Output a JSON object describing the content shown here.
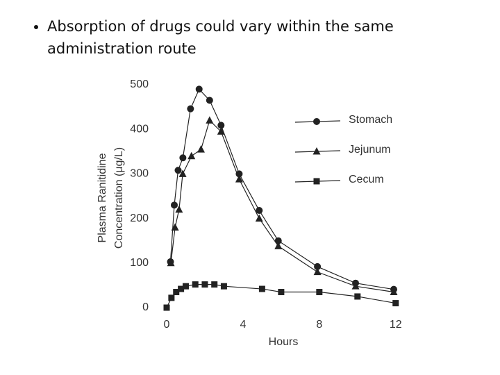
{
  "bullet": "Absorption of drugs could vary within the same administration route",
  "chart_data": {
    "type": "line",
    "ylabel": [
      "Plasma Ranitidine",
      "Concentration (μg/L)"
    ],
    "xlabel": "Hours",
    "xlim": [
      0,
      12.3
    ],
    "xticks": [
      0,
      4,
      8,
      12
    ],
    "ylim": [
      0,
      500
    ],
    "yticks": [
      0,
      100,
      200,
      300,
      400,
      500
    ],
    "color": "#222222",
    "series": [
      {
        "name": "Stomach",
        "marker": "circle",
        "x": [
          0.2,
          0.4,
          0.6,
          0.85,
          1.25,
          1.7,
          2.25,
          2.85,
          3.8,
          4.85,
          5.85,
          7.9,
          9.9,
          11.9
        ],
        "values": [
          103,
          230,
          308,
          336,
          446,
          490,
          465,
          409,
          300,
          218,
          150,
          92,
          55,
          41
        ]
      },
      {
        "name": "Jejunum",
        "marker": "triangle",
        "x": [
          0.22,
          0.44,
          0.65,
          0.84,
          1.3,
          1.8,
          2.25,
          2.85,
          3.8,
          4.85,
          5.85,
          7.9,
          9.9,
          11.9
        ],
        "values": [
          100,
          180,
          220,
          300,
          340,
          355,
          420,
          395,
          288,
          200,
          138,
          80,
          48,
          35
        ]
      },
      {
        "name": "Cecum",
        "marker": "square",
        "x": [
          0,
          0.25,
          0.5,
          0.75,
          1,
          1.5,
          2,
          2.5,
          3,
          5,
          6,
          8,
          10,
          12
        ],
        "values": [
          0,
          22,
          35,
          42,
          48,
          52,
          52,
          52,
          48,
          42,
          35,
          35,
          25,
          10
        ]
      }
    ]
  }
}
